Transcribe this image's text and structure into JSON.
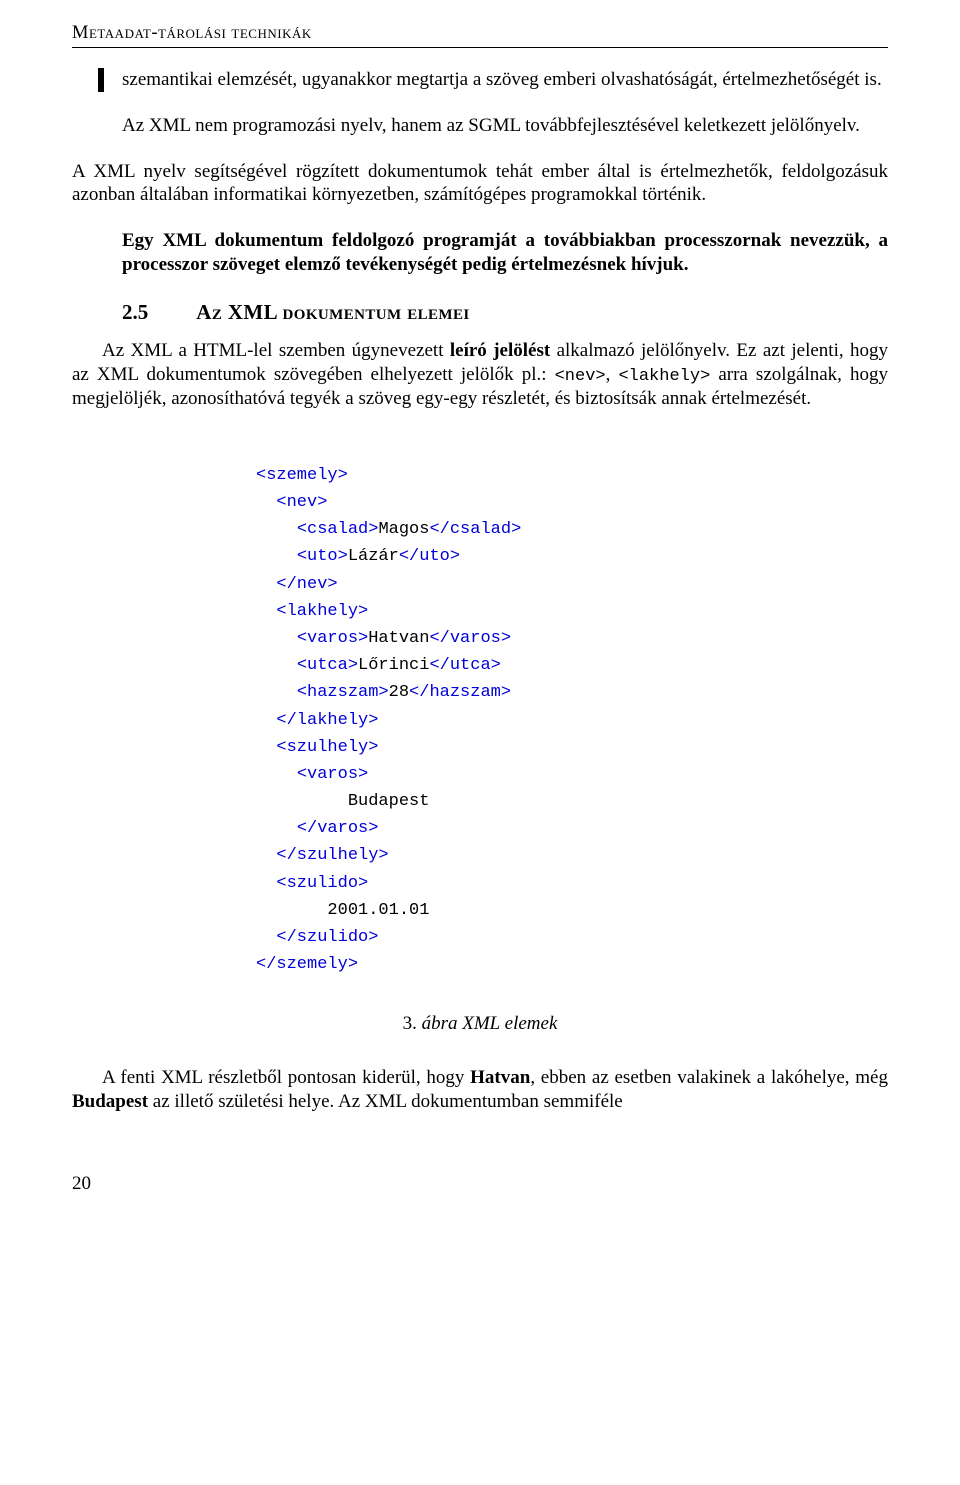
{
  "header": "Metaadat-tárolási technikák",
  "p1": "szemantikai elemzését, ugyanakkor megtartja a szöveg emberi olvashatóságát, értelmezhetőségét is.",
  "p2": "Az XML nem programozási nyelv, hanem az SGML továbbfejlesztésével keletkezett jelölőnyelv.",
  "p3": "A XML nyelv segítségével rögzített dokumentumok tehát ember által is értelmezhetők, feldolgozásuk azonban általában informatikai környezetben, számítógépes programokkal történik.",
  "p4": "Egy XML dokumentum feldolgozó programját a továbbiakban processzornak nevezzük, a processzor szöveget elemző tevékenységét pedig értelmezésnek hívjuk.",
  "section": {
    "num": "2.5",
    "title": "Az XML dokumentum elemei"
  },
  "p5a": "Az XML a HTML-lel szemben úgynevezett ",
  "p5b": "leíró jelölést",
  "p5c": " alkalmazó jelölőnyelv. Ez azt jelenti, hogy az XML dokumentumok szövegében elhelyezett jelölők pl.: ",
  "p5tag1": "<nev>",
  "p5comma": ", ",
  "p5tag2": "<lakhely>",
  "p5d": " arra szolgálnak, hogy megjelöljék, azonosíthatóvá tegyék a szöveg egy-egy részletét, és biztosítsák annak értelmezését.",
  "xml": {
    "l01a": "<szemely>",
    "l02a": "<nev>",
    "l03a": "<csalad>",
    "l03t": "Magos",
    "l03b": "</csalad>",
    "l04a": "<uto>",
    "l04t": "Lázár",
    "l04b": "</uto>",
    "l05a": "</nev>",
    "l06a": "<lakhely>",
    "l07a": "<varos>",
    "l07t": "Hatvan",
    "l07b": "</varos>",
    "l08a": "<utca>",
    "l08t": "Lőrinci",
    "l08b": "</utca>",
    "l09a": "<hazszam>",
    "l09t": "28",
    "l09b": "</hazszam>",
    "l10a": "</lakhely>",
    "l11a": "<szulhely>",
    "l12a": "<varos>",
    "l13t": "Budapest",
    "l14a": "</varos>",
    "l15a": "</szulhely>",
    "l16a": "<szulido>",
    "l17t": "2001.01.01",
    "l18a": "</szulido>",
    "l19a": "</szemely>"
  },
  "caption": {
    "num": "3.",
    "text": " ábra XML elemek"
  },
  "p6a": "A fenti XML részletből pontosan kiderül, hogy ",
  "p6b": "Hatvan",
  "p6c": ", ebben az esetben valakinek a lakóhelye, még ",
  "p6d": "Budapest",
  "p6e": " az illető születési helye. Az XML dokumentumban semmiféle",
  "pageNumber": "20"
}
